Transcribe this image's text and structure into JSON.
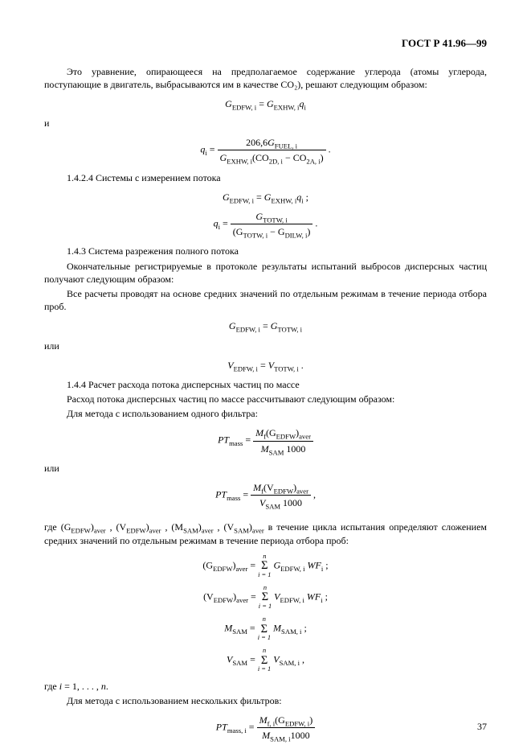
{
  "header": "ГОСТ Р 41.96—99",
  "p1": "Это уравнение, опирающееся на предполагаемое содержание углерода (атомы углерода, поступающие в двигатель, выбрасываются им в качестве CO₂), решают следующим образом:",
  "eq1_lhs": "G",
  "eq1_lsub": "EDFW, i",
  "eq1_rhs": "G",
  "eq1_rsub": "EXHW, i",
  "eq1_tail": "q",
  "eq1_tsub": "i",
  "and": "и",
  "eq2_lhs": "q",
  "eq2_lsub": "i",
  "eq2_num_a": "206,6",
  "eq2_num_b": "G",
  "eq2_num_bsub": "FUEL, i",
  "eq2_den_a": "G",
  "eq2_den_asub": "EXHW, i",
  "eq2_den_b": "(CO",
  "eq2_den_bsub": "2D, i",
  "eq2_den_c": " − CO",
  "eq2_den_csub": "2A, i",
  "eq2_den_d": ")",
  "s1424": "1.4.2.4  Системы с измерением потока",
  "eq3_lhs": "G",
  "eq3_lsub": "EDFW, i",
  "eq3_rhs": "G",
  "eq3_rsub": "EXHW, i",
  "eq3_tail": "q",
  "eq3_tsub": "i",
  "eq4_lhs": "q",
  "eq4_lsub": "i",
  "eq4_num": "G",
  "eq4_numsub": "TOTW, i",
  "eq4_den_a": "(G",
  "eq4_den_asub": "TOTW, i",
  "eq4_den_b": " − G",
  "eq4_den_bsub": "DILW, i",
  "eq4_den_c": ")",
  "s143": "1.4.3  Система разрежения полного потока",
  "p2": "Окончательные регистрируемые в протоколе результаты испытаний выбросов дисперсных частиц получают следующим образом:",
  "p3": "Все расчеты проводят на основе средних значений по отдельным режимам в течение периода отбора проб.",
  "eq5_lhs": "G",
  "eq5_lsub": "EDFW, i",
  "eq5_rhs": "G",
  "eq5_rsub": "TOTW, i",
  "or": "или",
  "eq6_lhs": "V",
  "eq6_lsub": "EDFW, i",
  "eq6_rhs": "V",
  "eq6_rsub": "TOTW, i",
  "s144": "1.4.4  Расчет расхода потока дисперсных частиц по массе",
  "p4": "Расход потока дисперсных частиц по массе рассчитывают следующим образом:",
  "p5": "Для метода с использованием одного фильтра:",
  "eq7_lhs": "PT",
  "eq7_lsub": "mass",
  "eq7_num_a": "M",
  "eq7_num_asub": "f",
  "eq7_num_b": "(G",
  "eq7_num_bsub": "EDFW",
  "eq7_num_c": ")",
  "eq7_num_csub": "aver",
  "eq7_den_a": "M",
  "eq7_den_asub": "SAM",
  "eq7_den_b": " 1000",
  "eq8_lhs": "PT",
  "eq8_lsub": "mass",
  "eq8_num_a": "M",
  "eq8_num_asub": "f",
  "eq8_num_b": "(V",
  "eq8_num_bsub": "EDFW",
  "eq8_num_c": ")",
  "eq8_num_csub": "aver",
  "eq8_den_a": "V",
  "eq8_den_asub": "SAM",
  "eq8_den_b": " 1000",
  "p6_a": "где (G",
  "p6_asub": "EDFW",
  "p6_a2": ")",
  "p6_a2sub": "aver",
  "p6_b": " , (V",
  "p6_bsub": "EDFW",
  "p6_b2": ")",
  "p6_b2sub": "aver",
  "p6_c": " , (M",
  "p6_csub": "SAM",
  "p6_c2": ")",
  "p6_c2sub": "aver",
  "p6_d": " , (V",
  "p6_dsub": "SAM",
  "p6_d2": ")",
  "p6_d2sub": "aver",
  "p6_tail": "  в течение цикла испытания определяют сложением средних значений по отдельным режимам в течение периода отбора проб:",
  "eq9_l": "(G",
  "eq9_lsub": "EDFW",
  "eq9_l2": ")",
  "eq9_l2sub": "aver",
  "eq9_r": "G",
  "eq9_rsub": "EDFW, i",
  "eq9_tail": " WF",
  "eq9_tsub": "i",
  "eq10_l": "(V",
  "eq10_lsub": "EDFW",
  "eq10_l2": ")",
  "eq10_l2sub": "aver",
  "eq10_r": "V",
  "eq10_rsub": "EDFW, i",
  "eq10_tail": " WF",
  "eq10_tsub": "i",
  "eq11_l": "M",
  "eq11_lsub": "SAM",
  "eq11_r": "M",
  "eq11_rsub": "SAM, i",
  "eq12_l": "V",
  "eq12_lsub": "SAM",
  "eq12_r": "V",
  "eq12_rsub": "SAM, i",
  "sum_top": "n",
  "sum_bot": "i = 1",
  "p7": "где i = 1, . . . , n.",
  "p8": "Для метода с использованием нескольких фильтров:",
  "eq13_lhs": "PT",
  "eq13_lsub": "mass, i",
  "eq13_num_a": "M",
  "eq13_num_asub": "f, i",
  "eq13_num_b": "(G",
  "eq13_num_bsub": "EDFW, i",
  "eq13_num_c": ")",
  "eq13_den_a": "M",
  "eq13_den_asub": "SAM, i",
  "eq13_den_b": "1000",
  "pagenum": "37"
}
